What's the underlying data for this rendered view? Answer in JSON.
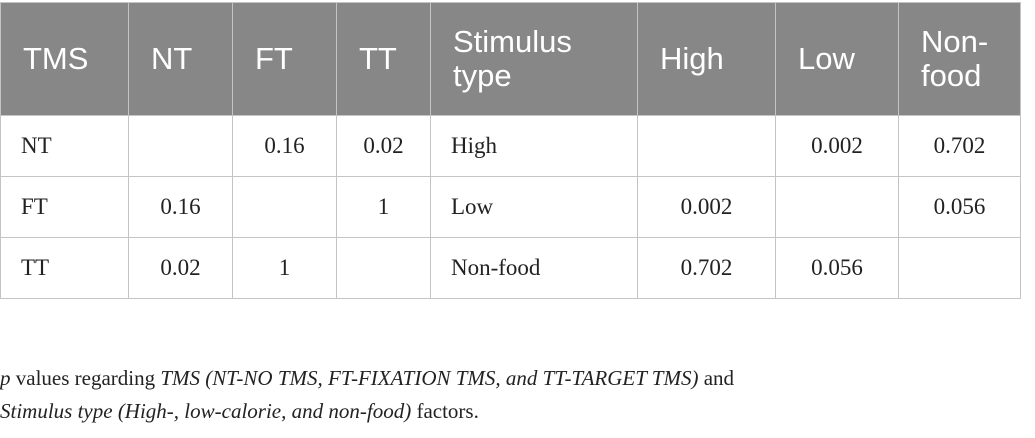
{
  "table": {
    "headers": [
      "TMS",
      "NT",
      "FT",
      "TT",
      "Stimulus type",
      "High",
      "Low",
      "Non-food"
    ],
    "rows": [
      [
        "NT",
        null,
        "0.16",
        "0.02",
        "High",
        null,
        "0.002",
        "0.702"
      ],
      [
        "FT",
        "0.16",
        null,
        "1",
        "Low",
        "0.002",
        null,
        "0.056"
      ],
      [
        "TT",
        "0.02",
        "1",
        null,
        "Non-food",
        "0.702",
        "0.056",
        null
      ]
    ]
  },
  "caption": [
    "p",
    " values regarding ",
    "TMS (NT-NO TMS, FT-FIXATION TMS, and TT-TARGET TMS)",
    " and",
    "Stimulus type (High-, low-calorie, and non-food)",
    " factors."
  ]
}
